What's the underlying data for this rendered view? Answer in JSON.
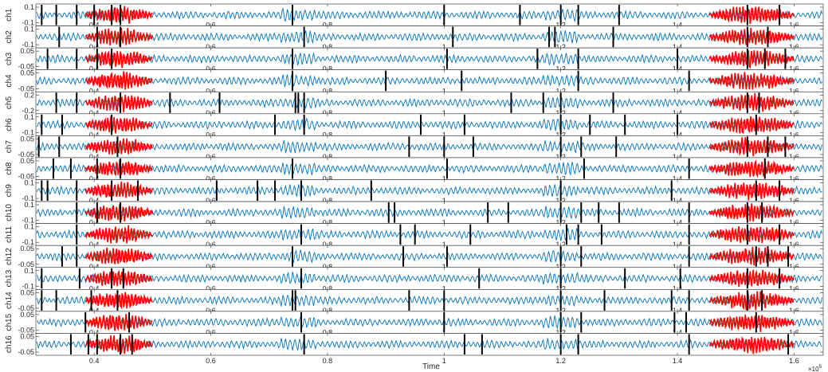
{
  "chart_data": {
    "type": "line",
    "xlabel": "Time",
    "x_multiplier": "×10",
    "x_multiplier_exp": "5",
    "xlim": [
      0.3,
      1.65
    ],
    "x_ticks": [
      0.4,
      0.6,
      0.8,
      1,
      1.2,
      1.4,
      1.6
    ],
    "x_tick_labels": [
      "0.4",
      "0.6",
      "0.8",
      "1",
      "1.2",
      "1.4",
      "1.6"
    ],
    "highlight_color": "#ff0000",
    "signal_color": "#0072bd",
    "marker_color": "#000000",
    "highlight_segments": [
      [
        0.385,
        0.5
      ],
      [
        1.455,
        1.6
      ]
    ],
    "channels": [
      {
        "name": "ch1",
        "ylim": [
          -0.1,
          0.1
        ],
        "ytick_labels": [
          "0.1",
          "-0.1"
        ],
        "markers": [
          0.31,
          0.335,
          0.37,
          0.4,
          0.43,
          0.445,
          0.74,
          1.0,
          1.13,
          1.2,
          1.23,
          1.3,
          1.52,
          1.575
        ]
      },
      {
        "name": "ch2",
        "ylim": [
          -0.1,
          0.1
        ],
        "ytick_labels": [
          "0.1",
          "-0.1"
        ],
        "markers": [
          0.34,
          0.405,
          0.445,
          0.76,
          1.015,
          1.18,
          1.19,
          1.29,
          1.52,
          1.555
        ]
      },
      {
        "name": "ch3",
        "ylim": [
          -0.05,
          0.05
        ],
        "ytick_labels": [
          "0.05",
          "-0.05"
        ],
        "markers": [
          0.32,
          0.37,
          0.405,
          0.43,
          0.74,
          1.005,
          1.16,
          1.23,
          1.4,
          1.52,
          1.55,
          1.585
        ]
      },
      {
        "name": "ch4",
        "ylim": [
          -0.05,
          0.05
        ],
        "ytick_labels": [
          "0.05",
          "-0.05"
        ],
        "markers": [
          0.74,
          0.9,
          1.03,
          1.23,
          1.42
        ]
      },
      {
        "name": "ch5",
        "ylim": [
          -0.2,
          0.2
        ],
        "ytick_labels": [
          "0.2",
          "-0.2"
        ],
        "markers": [
          0.335,
          0.37,
          0.445,
          0.53,
          0.615,
          0.745,
          0.75,
          0.76,
          1.115,
          1.17,
          1.2,
          1.29,
          1.52,
          1.54
        ]
      },
      {
        "name": "ch6",
        "ylim": [
          -0.1,
          0.1
        ],
        "ytick_labels": [
          "0.1",
          "-0.1"
        ],
        "markers": [
          0.31,
          0.345,
          0.43,
          0.71,
          0.76,
          0.96,
          1.035,
          1.2,
          1.25,
          1.31,
          1.4,
          1.535
        ]
      },
      {
        "name": "ch7",
        "ylim": [
          -0.05,
          0.05
        ],
        "ytick_labels": [
          "0.05",
          "-0.05"
        ],
        "markers": [
          0.305,
          0.34,
          0.44,
          0.94,
          1.0,
          1.05,
          1.2,
          1.235,
          1.295,
          1.52,
          1.555,
          1.585
        ]
      },
      {
        "name": "ch8",
        "ylim": [
          -0.05,
          0.05
        ],
        "ytick_labels": [
          "0.05",
          "-0.05"
        ],
        "markers": [
          0.33,
          0.36,
          0.405,
          0.445,
          0.74,
          1.005,
          1.24,
          1.42,
          1.55
        ]
      },
      {
        "name": "ch9",
        "ylim": [
          -0.1,
          0.1
        ],
        "ytick_labels": [
          "0.1",
          "-0.1"
        ],
        "markers": [
          0.31,
          0.32,
          0.37,
          0.43,
          0.475,
          0.61,
          0.68,
          0.71,
          0.755,
          0.875,
          1.2,
          1.39,
          1.535,
          1.575
        ]
      },
      {
        "name": "ch10",
        "ylim": [
          -0.1,
          0.1
        ],
        "ytick_labels": [
          "0.1",
          "-0.1"
        ],
        "markers": [
          0.37,
          0.405,
          0.445,
          0.905,
          0.915,
          1.075,
          1.11,
          1.2,
          1.235,
          1.265,
          1.3,
          1.42,
          1.52,
          1.545
        ]
      },
      {
        "name": "ch11",
        "ylim": [
          -0.1,
          0.1
        ],
        "ytick_labels": [
          "0.1",
          "-0.1"
        ],
        "markers": [
          0.37,
          0.755,
          0.925,
          0.95,
          1.045,
          1.21,
          1.23,
          1.27,
          1.42,
          1.52,
          1.575
        ]
      },
      {
        "name": "ch12",
        "ylim": [
          -0.05,
          0.05
        ],
        "ytick_labels": [
          "0.05",
          "-0.05"
        ],
        "markers": [
          0.345,
          0.37,
          0.74,
          0.93,
          1.005,
          1.2,
          1.235,
          1.42,
          1.535,
          1.555,
          1.59
        ]
      },
      {
        "name": "ch13",
        "ylim": [
          -0.1,
          0.1
        ],
        "ytick_labels": [
          "0.1",
          "-0.1"
        ],
        "markers": [
          0.31,
          0.375,
          0.43,
          0.45,
          0.755,
          1.06,
          1.2,
          1.31,
          1.405,
          1.52,
          1.575
        ]
      },
      {
        "name": "ch14",
        "ylim": [
          -0.05,
          0.05
        ],
        "ytick_labels": [
          "0.05",
          "-0.05"
        ],
        "markers": [
          0.31,
          0.335,
          0.395,
          0.44,
          0.74,
          0.745,
          0.94,
          1.0,
          1.2,
          1.275,
          1.39,
          1.42,
          1.52,
          1.545
        ]
      },
      {
        "name": "ch15",
        "ylim": [
          -0.05,
          0.05
        ],
        "ytick_labels": [
          "0.05",
          "-0.05"
        ],
        "markers": [
          0.385,
          0.46,
          0.755,
          1.0,
          1.2,
          1.235,
          1.395,
          1.415,
          1.535
        ]
      },
      {
        "name": "ch16",
        "ylim": [
          -0.05,
          0.05
        ],
        "ytick_labels": [
          "0.05",
          "-0.05"
        ],
        "markers": [
          0.36,
          0.39,
          0.405,
          0.445,
          0.465,
          0.76,
          1.035,
          1.065,
          1.2,
          1.23,
          1.42,
          1.59
        ]
      }
    ]
  }
}
